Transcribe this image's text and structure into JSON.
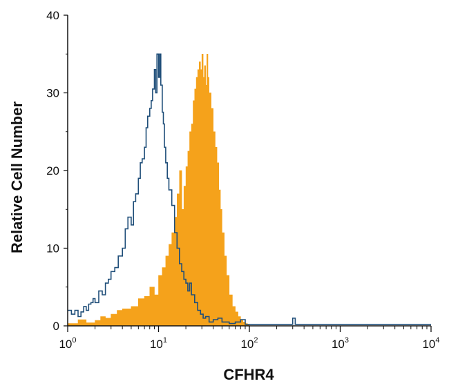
{
  "chart_data": {
    "type": "area",
    "title": "",
    "xlabel": "CFHR4",
    "ylabel": "Relative Cell Number",
    "x_scale": "log",
    "xlim": [
      1,
      10000
    ],
    "ylim": [
      0,
      40
    ],
    "grid": false,
    "legend": "none",
    "x_ticks": [
      {
        "value": 1,
        "base": "10",
        "exp": "0"
      },
      {
        "value": 10,
        "base": "10",
        "exp": "1"
      },
      {
        "value": 100,
        "base": "10",
        "exp": "2"
      },
      {
        "value": 1000,
        "base": "10",
        "exp": "3"
      },
      {
        "value": 10000,
        "base": "10",
        "exp": "4"
      }
    ],
    "y_ticks": [
      0,
      10,
      20,
      30,
      40
    ],
    "series": [
      {
        "style": "filled",
        "color": "#F5A21B",
        "x": [
          1.0,
          1.3,
          1.6,
          2.0,
          2.3,
          2.6,
          3.0,
          3.5,
          4.0,
          5.0,
          6.0,
          7.0,
          8.0,
          9.0,
          10.0,
          11.0,
          12.0,
          13.0,
          14.0,
          15.0,
          16.0,
          17.0,
          18.0,
          19.0,
          20.0,
          21.0,
          22.0,
          23.0,
          24.0,
          25.0,
          26.0,
          27.0,
          28.0,
          29.0,
          30.0,
          31.0,
          32.0,
          33.0,
          34.0,
          35.0,
          36.0,
          38.0,
          40.0,
          42.0,
          44.0,
          46.0,
          48.0,
          50.0,
          53.0,
          56.0,
          60.0,
          65.0,
          70.0,
          75.0,
          80.0,
          85.0,
          90.0,
          95.0,
          100.0
        ],
        "y": [
          0.3,
          0.8,
          0.4,
          0.7,
          1.2,
          1.0,
          1.5,
          2.0,
          2.2,
          2.5,
          3.5,
          3.8,
          5.0,
          4.0,
          6.5,
          7.5,
          9.0,
          10.5,
          12.0,
          14.0,
          17.0,
          20.0,
          15.0,
          18.0,
          20.5,
          22.5,
          25.0,
          26.0,
          29.0,
          30.5,
          32.0,
          33.0,
          34.0,
          33.0,
          35.0,
          32.0,
          33.5,
          31.0,
          35.0,
          32.0,
          30.0,
          28.0,
          25.0,
          23.0,
          21.0,
          17.5,
          15.0,
          12.0,
          9.0,
          6.5,
          4.0,
          2.5,
          1.8,
          1.2,
          0.8,
          0.5,
          0.3,
          0.1,
          0.0
        ]
      },
      {
        "style": "line",
        "color": "#1F4E79",
        "x": [
          1.0,
          1.1,
          1.2,
          1.3,
          1.4,
          1.5,
          1.6,
          1.7,
          1.8,
          1.9,
          2.0,
          2.2,
          2.4,
          2.6,
          2.8,
          3.0,
          3.3,
          3.6,
          4.0,
          4.3,
          4.6,
          5.0,
          5.3,
          5.6,
          6.0,
          6.3,
          6.6,
          7.0,
          7.3,
          7.6,
          8.0,
          8.3,
          8.6,
          9.0,
          9.3,
          9.6,
          10.0,
          10.3,
          10.6,
          11.0,
          11.3,
          11.6,
          12.0,
          12.5,
          13.0,
          14.0,
          15.0,
          16.0,
          17.0,
          18.0,
          19.0,
          20.0,
          21.0,
          22.0,
          23.0,
          25.0,
          27.0,
          29.0,
          31.0,
          33.0,
          36.0,
          40.0,
          45.0,
          50.0,
          60.0,
          70.0,
          80.0,
          90.0,
          100.0,
          120.0,
          200.0,
          280.0,
          300.0,
          320.0,
          400.0,
          1000.0,
          10000.0
        ],
        "y": [
          2.0,
          1.5,
          2.0,
          1.2,
          1.8,
          2.5,
          2.0,
          2.8,
          3.0,
          3.5,
          3.0,
          4.5,
          4.0,
          5.5,
          6.0,
          7.0,
          7.5,
          9.0,
          10.0,
          12.5,
          14.0,
          13.0,
          16.0,
          17.0,
          19.0,
          21.0,
          21.5,
          23.0,
          25.5,
          27.0,
          28.0,
          29.0,
          30.5,
          33.0,
          30.0,
          35.0,
          32.0,
          35.0,
          31.0,
          27.5,
          26.0,
          23.0,
          21.0,
          19.0,
          17.5,
          15.5,
          12.0,
          10.0,
          8.0,
          7.0,
          6.0,
          5.5,
          4.5,
          5.5,
          4.0,
          3.0,
          2.0,
          1.5,
          1.0,
          1.2,
          0.5,
          0.8,
          1.0,
          0.5,
          0.3,
          0.5,
          0.8,
          0.2,
          0.2,
          0.2,
          0.2,
          0.2,
          1.0,
          0.2,
          0.2,
          0.2,
          0.2
        ]
      }
    ]
  }
}
